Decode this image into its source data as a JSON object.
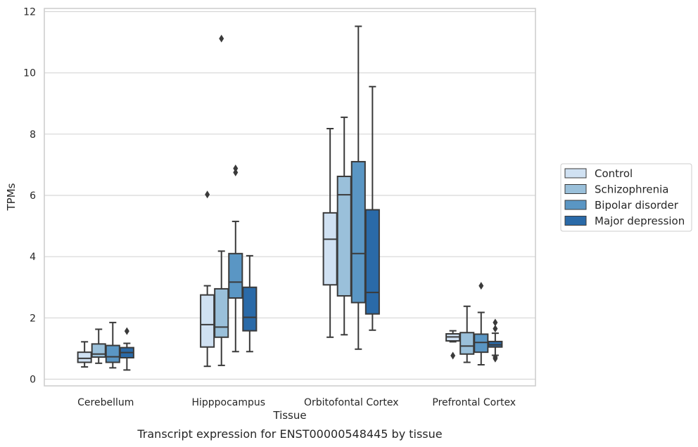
{
  "caption": "Transcript expression for ENST00000548445 by tissue",
  "chart_data": {
    "type": "box",
    "xlabel": "Tissue",
    "ylabel": "TPMs",
    "ylim": [
      -0.2,
      12.1
    ],
    "yticks": [
      0,
      2,
      4,
      6,
      8,
      10,
      12
    ],
    "grid": "horizontal",
    "legend_placement": "right",
    "categories": [
      "Cerebellum",
      "Hipppocampus",
      "Orbitofontal Cortex",
      "Prefrontal Cortex"
    ],
    "series": [
      {
        "name": "Control",
        "color": "#d0e1f2",
        "boxes": [
          {
            "whislo": 0.4,
            "q1": 0.55,
            "med": 0.68,
            "q3": 0.88,
            "whishi": 1.22,
            "fliers": []
          },
          {
            "whislo": 0.42,
            "q1": 1.05,
            "med": 1.78,
            "q3": 2.75,
            "whishi": 3.05,
            "fliers": [
              6.03
            ]
          },
          {
            "whislo": 1.37,
            "q1": 3.08,
            "med": 4.57,
            "q3": 5.43,
            "whishi": 8.18,
            "fliers": []
          },
          {
            "whislo": 1.22,
            "q1": 1.25,
            "med": 1.38,
            "q3": 1.48,
            "whishi": 1.58,
            "fliers": [
              0.77
            ]
          }
        ]
      },
      {
        "name": "Schizophrenia",
        "color": "#9ac0da",
        "boxes": [
          {
            "whislo": 0.52,
            "q1": 0.72,
            "med": 0.82,
            "q3": 1.15,
            "whishi": 1.63,
            "fliers": []
          },
          {
            "whislo": 0.45,
            "q1": 1.37,
            "med": 1.7,
            "q3": 2.95,
            "whishi": 4.18,
            "fliers": [
              11.12
            ]
          },
          {
            "whislo": 1.45,
            "q1": 2.72,
            "med": 6.02,
            "q3": 6.62,
            "whishi": 8.55,
            "fliers": []
          },
          {
            "whislo": 0.55,
            "q1": 0.82,
            "med": 1.08,
            "q3": 1.52,
            "whishi": 2.38,
            "fliers": []
          }
        ]
      },
      {
        "name": "Bipolar disorder",
        "color": "#5a96c4",
        "boxes": [
          {
            "whislo": 0.37,
            "q1": 0.55,
            "med": 0.73,
            "q3": 1.1,
            "whishi": 1.85,
            "fliers": []
          },
          {
            "whislo": 0.9,
            "q1": 2.65,
            "med": 3.17,
            "q3": 4.1,
            "whishi": 5.15,
            "fliers": [
              6.75,
              6.88
            ]
          },
          {
            "whislo": 0.98,
            "q1": 2.5,
            "med": 4.1,
            "q3": 7.1,
            "whishi": 11.52,
            "fliers": []
          },
          {
            "whislo": 0.47,
            "q1": 0.88,
            "med": 1.2,
            "q3": 1.47,
            "whishi": 2.18,
            "fliers": [
              3.05
            ]
          }
        ]
      },
      {
        "name": "Major depression",
        "color": "#2a6aa8",
        "boxes": [
          {
            "whislo": 0.3,
            "q1": 0.7,
            "med": 0.87,
            "q3": 1.03,
            "whishi": 1.17,
            "fliers": [
              1.57
            ]
          },
          {
            "whislo": 0.9,
            "q1": 1.58,
            "med": 2.02,
            "q3": 3.0,
            "whishi": 4.03,
            "fliers": []
          },
          {
            "whislo": 1.6,
            "q1": 2.13,
            "med": 2.83,
            "q3": 5.53,
            "whishi": 9.55,
            "fliers": []
          },
          {
            "whislo": 0.78,
            "q1": 1.05,
            "med": 1.12,
            "q3": 1.23,
            "whishi": 1.5,
            "fliers": [
              0.67,
              0.72,
              1.65,
              1.85
            ]
          }
        ]
      }
    ]
  }
}
